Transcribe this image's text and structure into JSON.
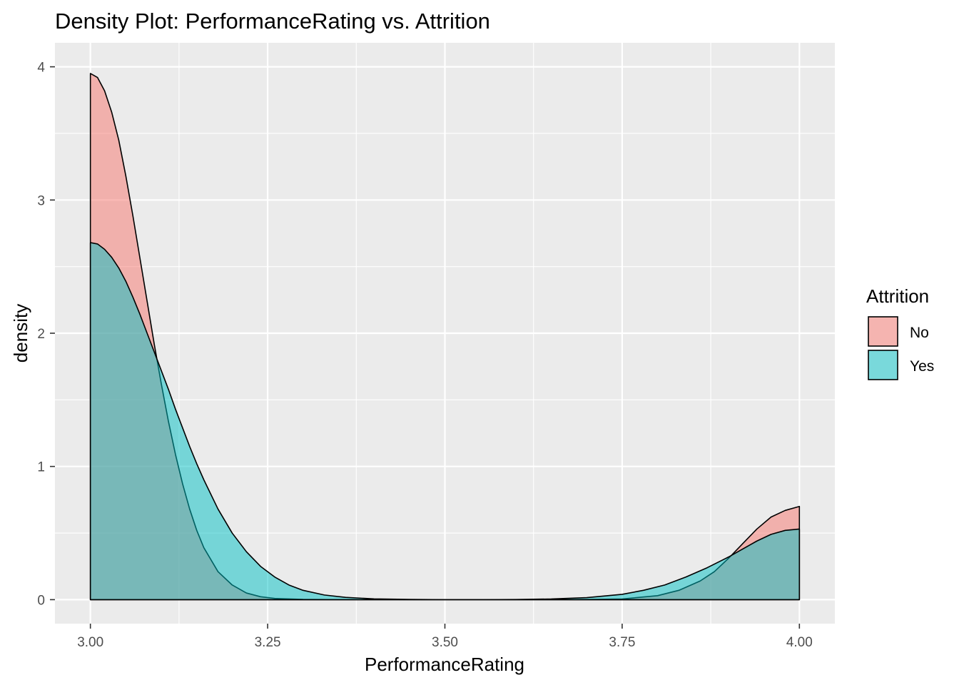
{
  "chart_data": {
    "type": "area",
    "subtype": "density",
    "title": "Density Plot: PerformanceRating vs. Attrition",
    "xlabel": "PerformanceRating",
    "ylabel": "density",
    "xlim": [
      2.95,
      4.05
    ],
    "ylim": [
      -0.18,
      4.18
    ],
    "x_ticks": [
      3.0,
      3.25,
      3.5,
      3.75,
      4.0
    ],
    "x_tick_labels": [
      "3.00",
      "3.25",
      "3.50",
      "3.75",
      "4.00"
    ],
    "y_ticks": [
      0,
      1,
      2,
      3,
      4
    ],
    "y_tick_labels": [
      "0",
      "1",
      "2",
      "3",
      "4"
    ],
    "grid": true,
    "legend": {
      "title": "Attrition",
      "position": "right"
    },
    "series": [
      {
        "name": "No",
        "color": "#F8766D",
        "fill_opacity": 0.5,
        "x": [
          3.0,
          3.01,
          3.02,
          3.03,
          3.04,
          3.05,
          3.06,
          3.07,
          3.08,
          3.09,
          3.1,
          3.11,
          3.12,
          3.13,
          3.14,
          3.15,
          3.16,
          3.18,
          3.2,
          3.22,
          3.24,
          3.26,
          3.3,
          3.35,
          3.4,
          3.45,
          3.5,
          3.55,
          3.6,
          3.65,
          3.7,
          3.75,
          3.8,
          3.83,
          3.86,
          3.88,
          3.9,
          3.92,
          3.94,
          3.96,
          3.98,
          4.0
        ],
        "y": [
          3.95,
          3.92,
          3.82,
          3.66,
          3.45,
          3.18,
          2.88,
          2.56,
          2.24,
          1.92,
          1.62,
          1.34,
          1.09,
          0.87,
          0.68,
          0.52,
          0.39,
          0.21,
          0.11,
          0.05,
          0.022,
          0.009,
          0.002,
          0.0,
          0.0,
          0.0,
          0.0,
          0.0,
          0.0,
          0.0,
          0.001,
          0.005,
          0.03,
          0.07,
          0.14,
          0.21,
          0.31,
          0.42,
          0.53,
          0.62,
          0.67,
          0.7
        ]
      },
      {
        "name": "Yes",
        "color": "#00BFC4",
        "fill_opacity": 0.5,
        "x": [
          3.0,
          3.01,
          3.02,
          3.03,
          3.04,
          3.05,
          3.06,
          3.07,
          3.08,
          3.09,
          3.1,
          3.11,
          3.12,
          3.13,
          3.14,
          3.15,
          3.16,
          3.18,
          3.2,
          3.22,
          3.24,
          3.26,
          3.28,
          3.3,
          3.33,
          3.36,
          3.4,
          3.45,
          3.5,
          3.55,
          3.6,
          3.65,
          3.7,
          3.75,
          3.78,
          3.81,
          3.84,
          3.87,
          3.9,
          3.92,
          3.94,
          3.96,
          3.98,
          4.0
        ],
        "y": [
          2.68,
          2.67,
          2.63,
          2.57,
          2.49,
          2.39,
          2.27,
          2.14,
          2.0,
          1.86,
          1.72,
          1.58,
          1.43,
          1.29,
          1.15,
          1.02,
          0.9,
          0.68,
          0.5,
          0.36,
          0.25,
          0.17,
          0.11,
          0.07,
          0.035,
          0.017,
          0.006,
          0.002,
          0.0,
          0.0,
          0.001,
          0.005,
          0.015,
          0.04,
          0.07,
          0.11,
          0.17,
          0.24,
          0.32,
          0.38,
          0.44,
          0.49,
          0.52,
          0.53
        ]
      }
    ]
  }
}
